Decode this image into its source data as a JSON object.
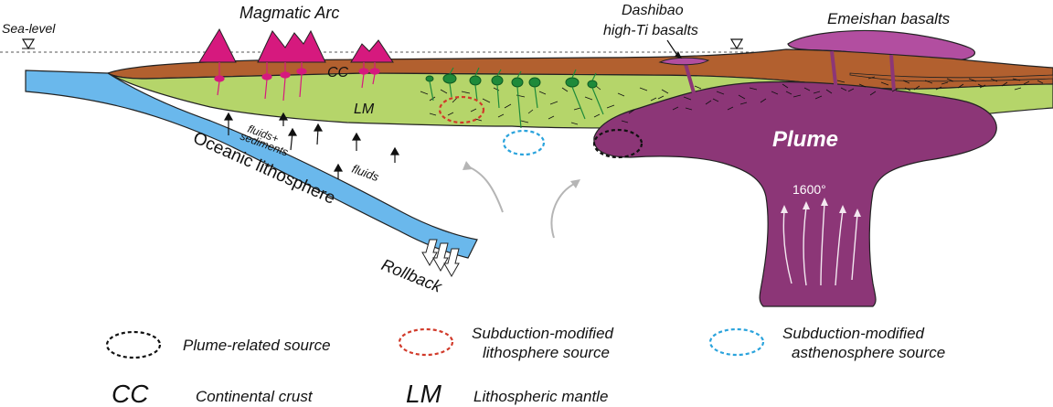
{
  "labels": {
    "sea_level": "Sea-level",
    "magmatic_arc": "Magmatic Arc",
    "dashibao_line1": "Dashibao",
    "dashibao_line2": "high-Ti basalts",
    "emeishan": "Emeishan basalts",
    "cc": "CC",
    "lm": "LM",
    "fluids_sediments_1": "fluids+",
    "fluids_sediments_2": "sediments",
    "fluids": "fluids",
    "oceanic": "Oceanic lithosphere",
    "rollback": "Rollback",
    "plume": "Plume",
    "temperature": "1600°"
  },
  "legend": {
    "plume_source": "Plume-related source",
    "sub_litho_1": "Subduction-modified",
    "sub_litho_2": "lithosphere source",
    "sub_astheno_1": "Subduction-modified",
    "sub_astheno_2": "asthenosphere source",
    "cc_abbr": "CC",
    "cc_full": "Continental crust",
    "lm_abbr": "LM",
    "lm_full": "Lithospheric mantle"
  },
  "colors": {
    "crust": "#b2602f",
    "mantle": "#b5d56a",
    "ocean": "#6ab8ec",
    "plume": "#8c3677",
    "arc": "#d6197e",
    "emeishan": "#b24ea0",
    "plume_circle": "#111111",
    "litho_circle": "#d13a2a",
    "astheno_circle": "#2aa3dc"
  }
}
